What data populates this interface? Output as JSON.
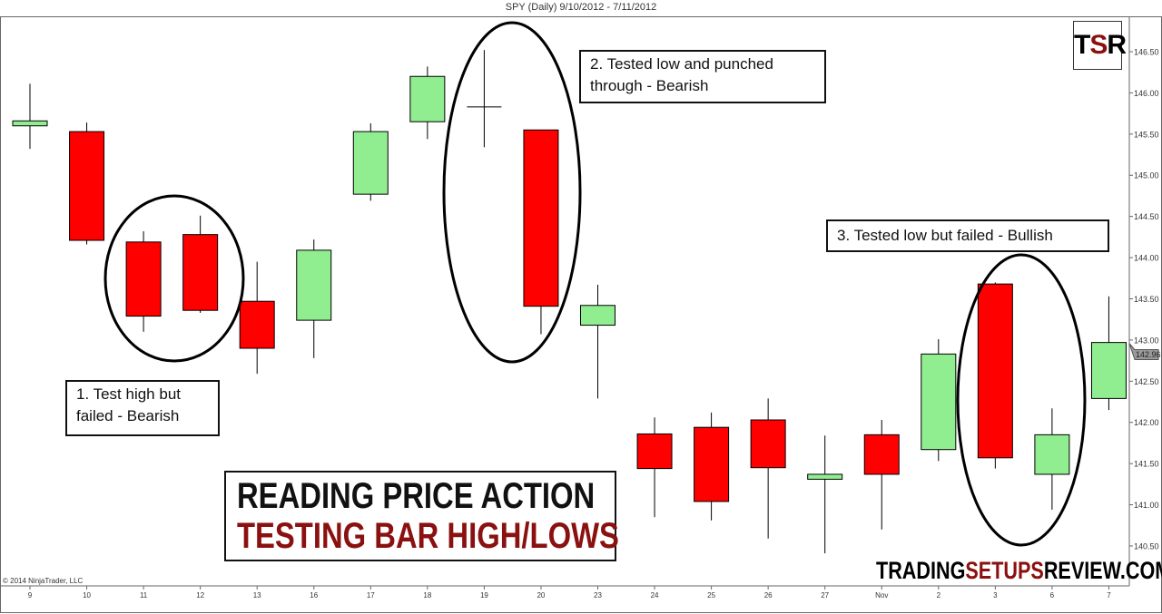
{
  "chart_data": {
    "type": "candlestick",
    "title": "SPY (Daily)  9/10/2012 - 7/11/2012",
    "categories": [
      "9",
      "10",
      "11",
      "12",
      "13",
      "16",
      "17",
      "18",
      "19",
      "20",
      "23",
      "24",
      "25",
      "26",
      "27",
      "Nov",
      "2",
      "3",
      "6",
      "7"
    ],
    "ohlc": [
      {
        "open": 145.6,
        "high": 146.11,
        "low": 145.32,
        "close": 145.66
      },
      {
        "open": 145.53,
        "high": 145.64,
        "low": 144.16,
        "close": 144.21
      },
      {
        "open": 144.19,
        "high": 144.32,
        "low": 143.1,
        "close": 143.29
      },
      {
        "open": 144.28,
        "high": 144.51,
        "low": 143.33,
        "close": 143.36
      },
      {
        "open": 143.47,
        "high": 143.95,
        "low": 142.59,
        "close": 142.9
      },
      {
        "open": 143.24,
        "high": 144.22,
        "low": 142.78,
        "close": 144.09
      },
      {
        "open": 144.77,
        "high": 145.63,
        "low": 144.69,
        "close": 145.53
      },
      {
        "open": 145.65,
        "high": 146.32,
        "low": 145.44,
        "close": 146.2
      },
      {
        "open": 145.83,
        "high": 146.52,
        "low": 145.34,
        "close": 145.83
      },
      {
        "open": 145.55,
        "high": 145.55,
        "low": 143.07,
        "close": 143.41
      },
      {
        "open": 143.18,
        "high": 143.67,
        "low": 142.29,
        "close": 143.42
      },
      {
        "open": 141.86,
        "high": 142.06,
        "low": 140.85,
        "close": 141.44
      },
      {
        "open": 141.94,
        "high": 142.12,
        "low": 140.81,
        "close": 141.04
      },
      {
        "open": 142.03,
        "high": 142.29,
        "low": 140.59,
        "close": 141.45
      },
      {
        "open": 141.31,
        "high": 141.84,
        "low": 140.41,
        "close": 141.37
      },
      {
        "open": 141.85,
        "high": 142.03,
        "low": 140.7,
        "close": 141.37
      },
      {
        "open": 141.67,
        "high": 143.01,
        "low": 141.53,
        "close": 142.83
      },
      {
        "open": 143.68,
        "high": 143.7,
        "low": 141.44,
        "close": 141.57
      },
      {
        "open": 141.37,
        "high": 142.17,
        "low": 140.94,
        "close": 141.85
      },
      {
        "open": 142.29,
        "high": 143.53,
        "low": 142.15,
        "close": 142.97
      }
    ],
    "yticks": [
      "146.50",
      "146.00",
      "145.50",
      "145.00",
      "144.50",
      "144.00",
      "143.50",
      "143.00",
      "142.50",
      "142.00",
      "141.50",
      "141.00",
      "140.50"
    ],
    "ylim": [
      140.32,
      146.75
    ],
    "last_price_label": "142.96",
    "colors": {
      "up": "#90ee90",
      "down": "#ff0000",
      "wick": "#000000"
    },
    "annotations": [
      {
        "text_line1": "1. Test high but",
        "text_line2": "failed - Bearish"
      },
      {
        "text_line1": "2. Tested low and punched",
        "text_line2": "through - Bearish"
      },
      {
        "text_line1": "3. Tested low but failed - Bullish"
      }
    ],
    "grid": false
  },
  "promo": {
    "line1": "READING PRICE ACTION",
    "line2": "TESTING BAR HIGH/LOWS"
  },
  "logo": {
    "t": "T",
    "s": "S",
    "r": "R"
  },
  "site": {
    "part1": "TRADING",
    "part2": "SETUPS",
    "part3": "REVIEW.COM"
  },
  "copyright": "© 2014 NinjaTrader, LLC"
}
